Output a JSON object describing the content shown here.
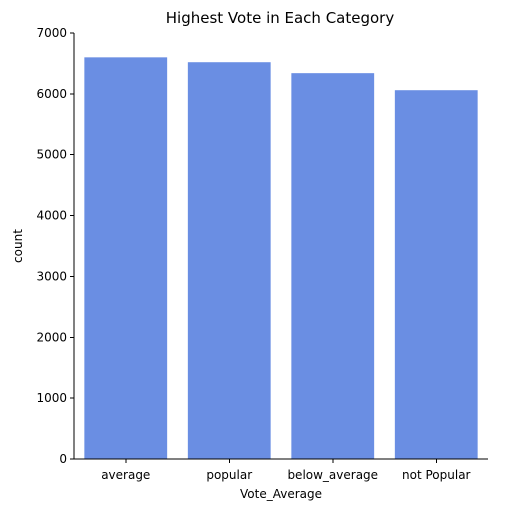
{
  "chart_data": {
    "type": "bar",
    "title": "Highest Vote in Each Category",
    "xlabel": "Vote_Average",
    "ylabel": "count",
    "categories": [
      "average",
      "popular",
      "below_average",
      "not Popular"
    ],
    "values": [
      6600,
      6520,
      6340,
      6060
    ],
    "ylim": [
      0,
      7000
    ],
    "yticks": [
      0,
      1000,
      2000,
      3000,
      4000,
      5000,
      6000,
      7000
    ],
    "bar_color": "#6a8ee3",
    "grid": false,
    "legend": "none"
  }
}
